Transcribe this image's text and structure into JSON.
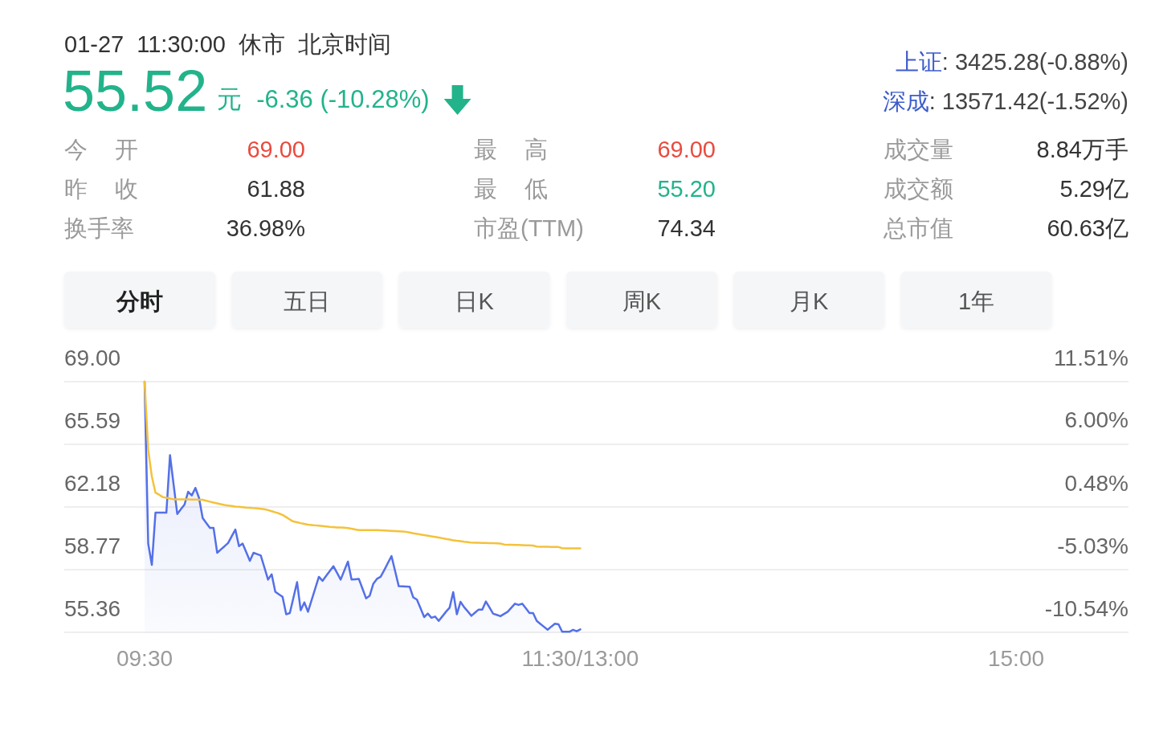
{
  "chart_data": {
    "type": "line",
    "title": "01-27 11:30:00 休市 北京时间",
    "annotations": [
      "55.52",
      "元",
      "-6.36 (-10.28%)",
      "上证",
      ": 3425.28(-0.88%)",
      "深成",
      ": 13571.42(-1.52%)",
      "今 开",
      "69.00",
      "最 高",
      "69.00",
      "成交量",
      "8.84万手",
      "昨 收",
      "61.88",
      "最 低",
      "55.20",
      "成交额",
      "5.29亿",
      "换手率",
      "36.98%",
      "市盈(TTM)",
      "74.34",
      "总市值",
      "60.63亿",
      "分时",
      "五日",
      "日K",
      "周K",
      "月K",
      "1年"
    ],
    "categories": [
      "09:30",
      null,
      null,
      null,
      null,
      null,
      null,
      null,
      null,
      null,
      null,
      null,
      null,
      null,
      null,
      null,
      null,
      null,
      null,
      null,
      null,
      null,
      null,
      null,
      null,
      null,
      null,
      null,
      null,
      null,
      null,
      null,
      null,
      null,
      null,
      null,
      null,
      null,
      null,
      null,
      null,
      null,
      null,
      null,
      null,
      null,
      null,
      null,
      null,
      null,
      null,
      null,
      null,
      null,
      null,
      null,
      null,
      null,
      null,
      null,
      null,
      null,
      null,
      null,
      null,
      null,
      null,
      null,
      null,
      null,
      null,
      null,
      null,
      null,
      null,
      null,
      null,
      null,
      null,
      null,
      null,
      null,
      null,
      null,
      null,
      null,
      null,
      null,
      null,
      null,
      null,
      null,
      null,
      null,
      null,
      null,
      null,
      null,
      null,
      null,
      null,
      null,
      null,
      null,
      null,
      null,
      null,
      null,
      null,
      null,
      null,
      null,
      null,
      null,
      null,
      null,
      null,
      null,
      null,
      null,
      "11:30/13:00",
      null,
      null,
      null,
      null,
      null,
      null,
      null,
      null,
      null,
      null,
      null,
      null,
      null,
      null,
      null,
      null,
      null,
      null,
      null,
      null,
      null,
      null,
      null,
      null,
      null,
      null,
      null,
      null,
      null,
      null,
      null,
      null,
      null,
      null,
      null,
      null,
      null,
      null,
      null,
      null,
      null,
      null,
      null,
      null,
      null,
      null,
      null,
      null,
      null,
      null,
      null,
      null,
      null,
      null,
      null,
      null,
      null,
      null,
      null,
      null,
      null,
      null,
      null,
      null,
      null,
      null,
      null,
      null,
      null,
      null,
      null,
      null,
      null,
      null,
      null,
      null,
      null,
      null,
      null,
      null,
      null,
      null,
      null,
      null,
      null,
      null,
      null,
      null,
      null,
      null,
      null,
      null,
      null,
      null,
      null,
      null,
      null,
      null,
      null,
      null,
      null,
      null,
      null,
      null,
      null,
      null,
      null,
      null,
      null,
      null,
      null,
      null,
      null,
      null,
      null,
      null,
      null,
      null,
      null,
      "15:00"
    ],
    "series": [
      {
        "type": "area",
        "color": "#5470e8",
        "values": [
          69.0,
          60.19,
          59.03,
          61.87,
          61.87,
          61.87,
          61.87,
          65.0,
          63.4,
          61.8,
          62.06,
          62.31,
          63.01,
          62.81,
          63.22,
          62.67,
          61.58,
          61.31,
          61.04,
          61.04,
          59.69,
          59.87,
          60.04,
          60.22,
          60.59,
          60.95,
          60.05,
          60.19,
          59.72,
          59.25,
          59.69,
          59.62,
          59.54,
          58.89,
          58.23,
          58.52,
          57.57,
          57.43,
          57.29,
          56.34,
          56.41,
          57.25,
          58.09,
          56.56,
          56.99,
          56.48,
          57.11,
          57.75,
          58.38,
          58.16,
          58.43,
          58.69,
          58.96,
          58.6,
          58.23,
          58.72,
          59.21,
          58.23,
          58.25,
          58.27,
          57.74,
          57.21,
          57.35,
          58.01,
          58.27,
          58.38,
          58.74,
          59.13,
          59.51,
          58.69,
          57.87,
          57.86,
          57.85,
          57.84,
          57.26,
          57.14,
          56.67,
          56.19,
          56.38,
          56.15,
          56.22,
          55.98,
          56.23,
          56.48,
          56.7,
          57.55,
          56.34,
          57.02,
          56.73,
          56.5,
          56.26,
          56.43,
          56.6,
          56.59,
          57.04,
          56.71,
          56.37,
          56.31,
          56.24,
          56.36,
          56.48,
          56.7,
          56.92,
          56.85,
          56.92,
          56.67,
          56.41,
          56.41,
          55.98,
          55.82,
          55.66,
          55.5,
          55.67,
          55.83,
          55.8,
          55.39,
          55.39,
          55.39,
          55.5,
          55.42,
          55.52,
          null,
          null,
          null,
          null,
          null,
          null,
          null,
          null,
          null,
          null,
          null,
          null,
          null,
          null,
          null,
          null,
          null,
          null,
          null,
          null,
          null,
          null,
          null,
          null,
          null,
          null,
          null,
          null,
          null,
          null,
          null,
          null,
          null,
          null,
          null,
          null,
          null,
          null,
          null,
          null,
          null,
          null,
          null,
          null,
          null,
          null,
          null,
          null,
          null,
          null,
          null,
          null,
          null,
          null,
          null,
          null,
          null,
          null,
          null,
          null,
          null,
          null,
          null,
          null,
          null,
          null,
          null,
          null,
          null,
          null,
          null,
          null,
          null,
          null,
          null,
          null,
          null,
          null,
          null,
          null,
          null,
          null,
          null,
          null,
          null,
          null,
          null,
          null,
          null,
          null,
          null,
          null,
          null,
          null,
          null,
          null,
          null,
          null,
          null,
          null,
          null,
          null,
          null,
          null,
          null,
          null,
          null,
          null,
          null,
          null,
          null,
          null,
          null,
          null,
          null,
          null,
          null,
          null,
          null,
          null
        ]
      },
      {
        "color": "#f4c23a",
        "values": [
          69.0,
          65.29,
          63.84,
          62.96,
          62.85,
          62.72,
          62.68,
          62.64,
          62.6,
          62.6,
          62.6,
          62.59,
          62.59,
          62.58,
          62.58,
          62.57,
          62.57,
          62.52,
          62.47,
          62.42,
          62.38,
          62.33,
          62.29,
          62.26,
          62.23,
          62.2,
          62.19,
          62.17,
          62.15,
          62.14,
          62.12,
          62.1,
          62.08,
          62.06,
          62.01,
          61.95,
          61.89,
          61.83,
          61.75,
          61.63,
          61.5,
          61.39,
          61.35,
          61.3,
          61.26,
          61.22,
          61.2,
          61.18,
          61.16,
          61.14,
          61.12,
          61.1,
          61.09,
          61.07,
          61.06,
          61.05,
          61.03,
          61.0,
          60.96,
          60.92,
          60.92,
          60.92,
          60.92,
          60.92,
          60.92,
          60.91,
          60.9,
          60.89,
          60.88,
          60.87,
          60.86,
          60.85,
          60.83,
          60.79,
          60.75,
          60.72,
          60.68,
          60.65,
          60.62,
          60.58,
          60.55,
          60.52,
          60.48,
          60.44,
          60.41,
          60.37,
          60.34,
          60.32,
          60.29,
          60.27,
          60.24,
          60.23,
          60.23,
          60.22,
          60.22,
          60.21,
          60.21,
          60.2,
          60.19,
          60.14,
          60.12,
          60.12,
          60.11,
          60.11,
          60.1,
          60.09,
          60.09,
          60.08,
          60.03,
          60.02,
          60.02,
          60.02,
          60.01,
          60.01,
          60.0,
          59.94,
          59.93,
          59.93,
          59.93,
          59.93,
          59.93,
          null,
          null,
          null,
          null,
          null,
          null,
          null,
          null,
          null,
          null,
          null,
          null,
          null,
          null,
          null,
          null,
          null,
          null,
          null,
          null,
          null,
          null,
          null,
          null,
          null,
          null,
          null,
          null,
          null,
          null,
          null,
          null,
          null,
          null,
          null,
          null,
          null,
          null,
          null,
          null,
          null,
          null,
          null,
          null,
          null,
          null,
          null,
          null,
          null,
          null,
          null,
          null,
          null,
          null,
          null,
          null,
          null,
          null,
          null,
          null,
          null,
          null,
          null,
          null,
          null,
          null,
          null,
          null,
          null,
          null,
          null,
          null,
          null,
          null,
          null,
          null,
          null,
          null,
          null,
          null,
          null,
          null,
          null,
          null,
          null,
          null,
          null,
          null,
          null,
          null,
          null,
          null,
          null,
          null,
          null,
          null,
          null,
          null,
          null,
          null,
          null,
          null,
          null,
          null,
          null,
          null,
          null,
          null,
          null,
          null,
          null,
          null,
          null,
          null,
          null,
          null,
          null,
          null,
          null,
          null
        ]
      }
    ],
    "ylim": [
      55.36,
      69
    ],
    "yticks": [
      {
        "value": 69,
        "label": "69.00"
      },
      65.59,
      62.18,
      58.77,
      55.36
    ],
    "y2lim": [
      -10.54,
      11.51
    ],
    "y2ticks": [
      {
        "value": 11.51,
        "label": "11.51%"
      },
      {
        "value": 6,
        "label": "6.00%"
      },
      {
        "value": 0.48,
        "label": "0.48%"
      },
      {
        "value": -5.03,
        "label": "-5.03%"
      },
      {
        "value": -10.54,
        "label": "-10.54%"
      }
    ],
    "grid": "y"
  }
}
